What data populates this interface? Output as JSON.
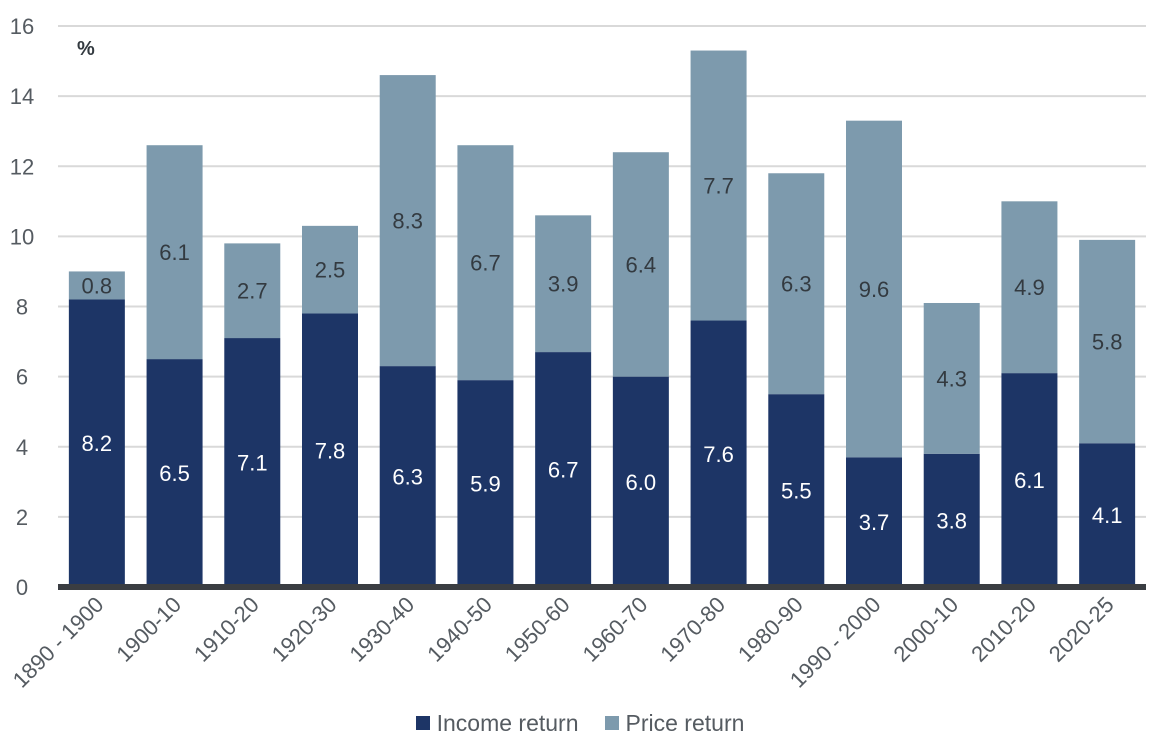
{
  "chart_data": {
    "type": "bar",
    "stacked": true,
    "ylabel": "%",
    "ylim": [
      0,
      16
    ],
    "yticks": [
      0,
      2,
      4,
      6,
      8,
      10,
      12,
      14,
      16
    ],
    "grid": true,
    "legend_position": "bottom",
    "categories": [
      "1890 - 1900",
      "1900-10",
      "1910-20",
      "1920-30",
      "1930-40",
      "1940-50",
      "1950-60",
      "1960-70",
      "1970-80",
      "1980-90",
      "1990 - 2000",
      "2000-10",
      "2010-20",
      "2020-25"
    ],
    "series": [
      {
        "name": "Income return",
        "color": "#1d3566",
        "values": [
          8.2,
          6.5,
          7.1,
          7.8,
          6.3,
          5.9,
          6.7,
          6.0,
          7.6,
          5.5,
          3.7,
          3.8,
          6.1,
          4.1
        ],
        "labels": [
          "8.2",
          "6.5",
          "7.1",
          "7.8",
          "6.3",
          "5.9",
          "6.7",
          "6.0",
          "7.6",
          "5.5",
          "3.7",
          "3.8",
          "6.1",
          "4.1"
        ],
        "label_color": "#ffffff"
      },
      {
        "name": "Price return",
        "color": "#7d9aad",
        "values": [
          0.8,
          6.1,
          2.7,
          2.5,
          8.3,
          6.7,
          3.9,
          6.4,
          7.7,
          6.3,
          9.6,
          4.3,
          4.9,
          5.8
        ],
        "labels": [
          "0.8",
          "6.1",
          "2.7",
          "2.5",
          "8.3",
          "6.7",
          "3.9",
          "6.4",
          "7.7",
          "6.3",
          "9.6",
          "4.3",
          "4.9",
          "5.8"
        ],
        "label_color": "#333a40"
      }
    ]
  }
}
